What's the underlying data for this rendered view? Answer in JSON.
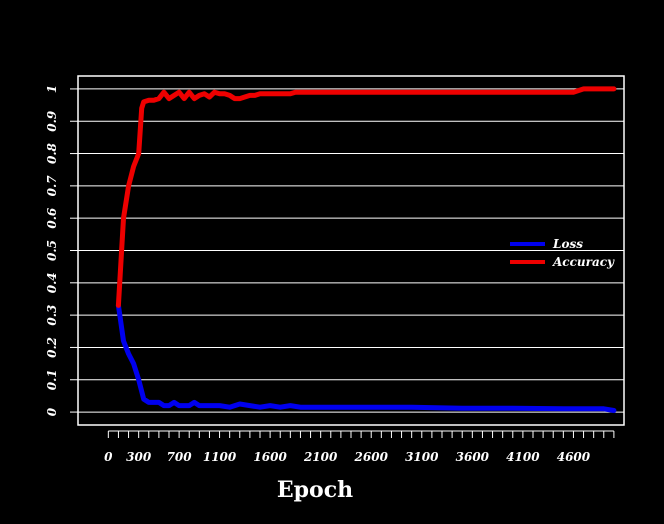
{
  "chart_data": {
    "type": "line",
    "title": "",
    "xlabel": "Epoch",
    "ylabel": "",
    "xlim": [
      -300,
      5100
    ],
    "ylim": [
      -0.04,
      1.04
    ],
    "x_ticks": [
      0,
      300,
      700,
      1100,
      1600,
      2100,
      2600,
      3100,
      3600,
      4100,
      4600
    ],
    "x_minor_tick_step": 100,
    "y_ticks": [
      0,
      0.1,
      0.2,
      0.3,
      0.4,
      0.5,
      0.6,
      0.7,
      0.8,
      0.9,
      1
    ],
    "y_tick_labels": [
      "0",
      "0.1",
      "0.2",
      "0.3",
      "0.4",
      "0.5",
      "0.6",
      "0.7",
      "0.8",
      "0.9",
      "1"
    ],
    "grid": "horizontal",
    "legend_position": "right",
    "background": "#000000",
    "foreground": "#ffffff",
    "series": [
      {
        "name": "Loss",
        "color": "#0000ee",
        "x": [
          100,
          150,
          200,
          250,
          300,
          350,
          400,
          450,
          500,
          550,
          600,
          650,
          700,
          750,
          800,
          850,
          900,
          950,
          1000,
          1100,
          1200,
          1300,
          1400,
          1500,
          1600,
          1700,
          1800,
          1900,
          2000,
          2500,
          3000,
          3500,
          4000,
          4500,
          4900,
          5000
        ],
        "y": [
          0.33,
          0.22,
          0.18,
          0.15,
          0.1,
          0.04,
          0.03,
          0.03,
          0.03,
          0.02,
          0.02,
          0.03,
          0.02,
          0.02,
          0.02,
          0.03,
          0.02,
          0.02,
          0.02,
          0.02,
          0.015,
          0.025,
          0.02,
          0.015,
          0.02,
          0.015,
          0.02,
          0.015,
          0.015,
          0.015,
          0.015,
          0.012,
          0.012,
          0.01,
          0.01,
          0.005
        ]
      },
      {
        "name": "Accuracy",
        "color": "#ee0000",
        "x": [
          100,
          150,
          200,
          250,
          300,
          330,
          350,
          400,
          450,
          500,
          550,
          600,
          650,
          700,
          750,
          800,
          850,
          900,
          950,
          1000,
          1050,
          1100,
          1150,
          1200,
          1250,
          1300,
          1350,
          1400,
          1450,
          1500,
          1550,
          1600,
          1650,
          1700,
          1750,
          1800,
          1850,
          1900,
          1950,
          2000,
          2500,
          3000,
          3500,
          4000,
          4500,
          4600,
          4700,
          4800,
          4900,
          5000
        ],
        "y": [
          0.33,
          0.6,
          0.7,
          0.76,
          0.8,
          0.94,
          0.96,
          0.965,
          0.965,
          0.97,
          0.99,
          0.97,
          0.98,
          0.99,
          0.97,
          0.99,
          0.97,
          0.98,
          0.985,
          0.975,
          0.99,
          0.985,
          0.985,
          0.98,
          0.97,
          0.97,
          0.975,
          0.98,
          0.98,
          0.985,
          0.985,
          0.985,
          0.985,
          0.985,
          0.985,
          0.985,
          0.99,
          0.99,
          0.99,
          0.99,
          0.99,
          0.99,
          0.99,
          0.99,
          0.99,
          0.99,
          1.0,
          1.0,
          1.0,
          1.0
        ]
      }
    ]
  }
}
